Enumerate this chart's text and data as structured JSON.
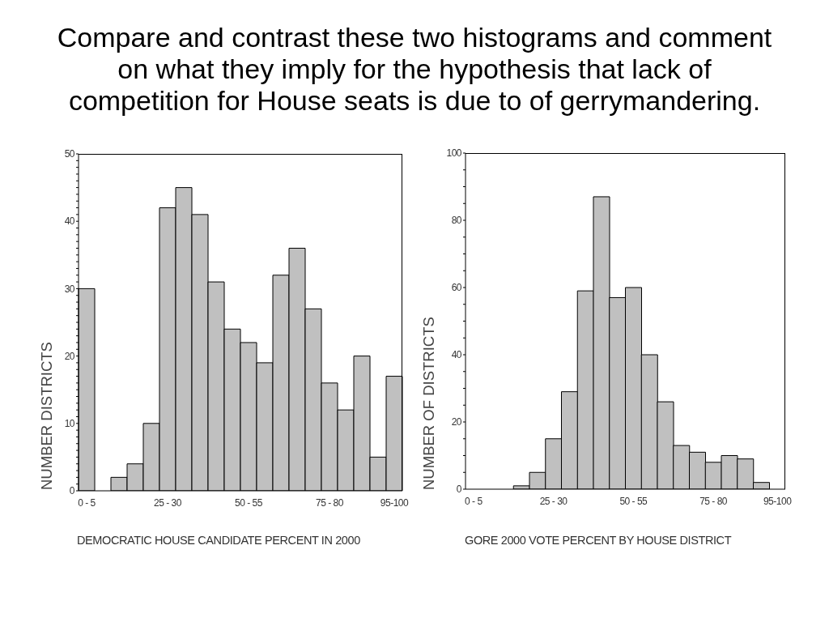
{
  "chart_data": [
    {
      "type": "bar",
      "title": "Compare and contrast these two histograms and comment on what they imply for the hypothesis that lack of competition for House seats is due to of gerrymandering.",
      "xlabel": "DEMOCRATIC HOUSE CANDIDATE PERCENT IN 2000",
      "ylabel": "NUMBER DISTRICTS",
      "categories": [
        "0 - 5",
        null,
        null,
        null,
        null,
        "25 - 30",
        null,
        null,
        null,
        null,
        "50 - 55",
        null,
        null,
        null,
        null,
        "75 - 80",
        null,
        null,
        null,
        "95-100"
      ],
      "values": [
        30,
        0,
        2,
        4,
        10,
        42,
        45,
        41,
        31,
        24,
        22,
        19,
        32,
        36,
        27,
        16,
        12,
        20,
        5,
        17
      ],
      "color": "#c0c0c0",
      "ylim": [
        0,
        50
      ],
      "yticks": [
        0,
        {
          "value": 1,
          "label": null
        },
        {
          "value": 2,
          "label": null
        },
        {
          "value": 3,
          "label": null
        },
        {
          "value": 4,
          "label": null
        },
        {
          "value": 5,
          "label": null
        },
        {
          "value": 6,
          "label": null
        },
        {
          "value": 7,
          "label": null
        },
        {
          "value": 8,
          "label": null
        },
        {
          "value": 9,
          "label": null
        },
        10,
        {
          "value": 11,
          "label": null
        },
        {
          "value": 12,
          "label": null
        },
        {
          "value": 13,
          "label": null
        },
        {
          "value": 14,
          "label": null
        },
        {
          "value": 15,
          "label": null
        },
        {
          "value": 16,
          "label": null
        },
        {
          "value": 17,
          "label": null
        },
        {
          "value": 18,
          "label": null
        },
        {
          "value": 19,
          "label": null
        },
        20,
        {
          "value": 21,
          "label": null
        },
        {
          "value": 22,
          "label": null
        },
        {
          "value": 23,
          "label": null
        },
        {
          "value": 24,
          "label": null
        },
        {
          "value": 25,
          "label": null
        },
        {
          "value": 26,
          "label": null
        },
        {
          "value": 27,
          "label": null
        },
        {
          "value": 28,
          "label": null
        },
        {
          "value": 29,
          "label": null
        },
        30,
        {
          "value": 31,
          "label": null
        },
        {
          "value": 32,
          "label": null
        },
        {
          "value": 33,
          "label": null
        },
        {
          "value": 34,
          "label": null
        },
        {
          "value": 35,
          "label": null
        },
        {
          "value": 36,
          "label": null
        },
        {
          "value": 37,
          "label": null
        },
        {
          "value": 38,
          "label": null
        },
        {
          "value": 39,
          "label": null
        },
        40,
        {
          "value": 41,
          "label": null
        },
        {
          "value": 42,
          "label": null
        },
        {
          "value": 43,
          "label": null
        },
        {
          "value": 44,
          "label": null
        },
        {
          "value": 45,
          "label": null
        },
        {
          "value": 46,
          "label": null
        },
        {
          "value": 47,
          "label": null
        },
        {
          "value": 48,
          "label": null
        },
        {
          "value": 49,
          "label": null
        },
        50
      ]
    },
    {
      "type": "bar",
      "xlabel": "GORE 2000 VOTE PERCENT BY HOUSE DISTRICT",
      "ylabel": "NUMBER OF DISTRICTS",
      "categories": [
        "0 - 5",
        null,
        null,
        null,
        null,
        "25 - 30",
        null,
        null,
        null,
        null,
        "50 - 55",
        null,
        null,
        null,
        null,
        "75 - 80",
        null,
        null,
        null,
        "95-100"
      ],
      "values": [
        0,
        0,
        0,
        1,
        5,
        15,
        29,
        59,
        87,
        57,
        60,
        40,
        26,
        13,
        11,
        8,
        10,
        9,
        2,
        0
      ],
      "color": "#c0c0c0",
      "ylim": [
        0,
        100
      ],
      "yticks": [
        0,
        {
          "value": 5,
          "label": null
        },
        {
          "value": 10,
          "label": null
        },
        {
          "value": 15,
          "label": null
        },
        20,
        {
          "value": 25,
          "label": null
        },
        {
          "value": 30,
          "label": null
        },
        {
          "value": 35,
          "label": null
        },
        40,
        {
          "value": 45,
          "label": null
        },
        {
          "value": 50,
          "label": null
        },
        {
          "value": 55,
          "label": null
        },
        60,
        {
          "value": 65,
          "label": null
        },
        {
          "value": 70,
          "label": null
        },
        {
          "value": 75,
          "label": null
        },
        80,
        {
          "value": 85,
          "label": null
        },
        {
          "value": 90,
          "label": null
        },
        {
          "value": 95,
          "label": null
        },
        100
      ]
    }
  ]
}
